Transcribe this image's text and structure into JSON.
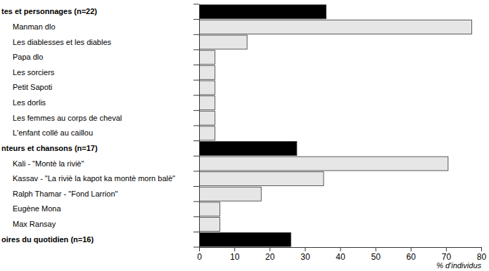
{
  "chart_data": {
    "type": "bar",
    "orientation": "horizontal",
    "categories": [
      "tes et personnages (n=22)",
      "Manman dlo",
      "Les diablesses et les diables",
      "Papa dlo",
      "Les sorciers",
      "Petit Sapoti",
      "Les dorlis",
      "Les femmes au corps de cheval",
      "L'enfant collé au caillou",
      "nteurs et chansons (n=17)",
      "Kali - \"Montè la riviè\"",
      "Kassav - \"La riviè la kapot ka montè morn balè\"",
      "Ralph Thamar - \"Fond Larrion\"",
      "Eugène Mona",
      "Max Ransay",
      "oires du quotidien (n=16)"
    ],
    "values": [
      36,
      77.3,
      13.6,
      4.5,
      4.5,
      4.5,
      4.5,
      4.5,
      4.5,
      27.7,
      70.6,
      35.3,
      17.6,
      5.9,
      5.9,
      26
    ],
    "colors": [
      "#000000",
      "#e6e6e6",
      "#e6e6e6",
      "#e6e6e6",
      "#e6e6e6",
      "#e6e6e6",
      "#e6e6e6",
      "#e6e6e6",
      "#e6e6e6",
      "#000000",
      "#e6e6e6",
      "#e6e6e6",
      "#e6e6e6",
      "#e6e6e6",
      "#e6e6e6",
      "#000000"
    ],
    "x_label": "% d'individus",
    "xlim": [
      0,
      80
    ],
    "xticks": [
      0,
      10,
      20,
      30,
      40,
      50,
      60,
      70,
      80
    ],
    "grid": false
  }
}
